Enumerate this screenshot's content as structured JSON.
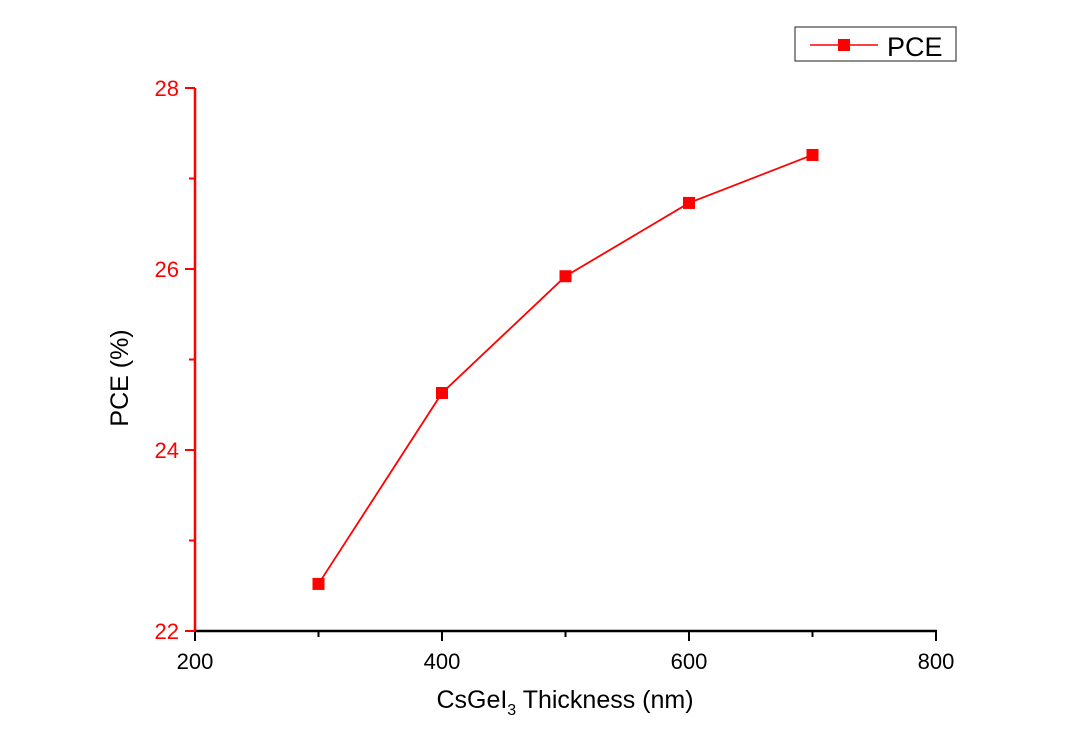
{
  "chart_data": {
    "type": "line",
    "title": "",
    "xlabel_parts": {
      "main": "CsGeI",
      "sub": "3",
      "rest": " Thickness (nm)"
    },
    "ylabel": "PCE (%)",
    "xlim": [
      200,
      800
    ],
    "ylim": [
      22,
      28
    ],
    "xticks": [
      200,
      400,
      600,
      800
    ],
    "xminor": [
      300,
      500,
      700
    ],
    "yticks": [
      22,
      24,
      26,
      28
    ],
    "yminor": [
      23,
      25,
      27
    ],
    "grid": false,
    "legend": {
      "position": "top-right",
      "entries": [
        "PCE"
      ]
    },
    "series": [
      {
        "name": "PCE",
        "color": "#ff0000",
        "marker": "square",
        "x": [
          300,
          400,
          500,
          600,
          700
        ],
        "y": [
          22.52,
          24.63,
          25.92,
          26.73,
          27.26
        ]
      }
    ],
    "colors": {
      "axis_x": "#000000",
      "axis_y": "#ff0000"
    }
  }
}
